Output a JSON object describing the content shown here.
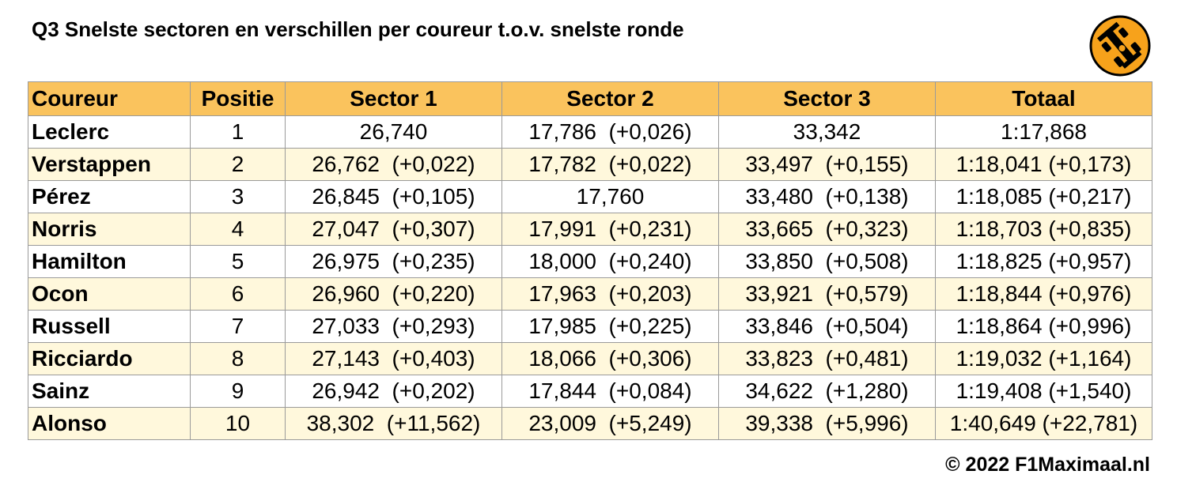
{
  "header": {
    "title": "Q3 Snelste sectoren en verschillen per coureur t.o.v. snelste ronde"
  },
  "table": {
    "columns": [
      "Coureur",
      "Positie",
      "Sector 1",
      "Sector 2",
      "Sector 3",
      "Totaal"
    ],
    "rows": [
      [
        "Leclerc",
        "1",
        "26,740",
        "17,786  (+0,026)",
        "33,342",
        "1:17,868"
      ],
      [
        "Verstappen",
        "2",
        "26,762  (+0,022)",
        "17,782  (+0,022)",
        "33,497  (+0,155)",
        "1:18,041 (+0,173)"
      ],
      [
        "Pérez",
        "3",
        "26,845  (+0,105)",
        "17,760",
        "33,480  (+0,138)",
        "1:18,085 (+0,217)"
      ],
      [
        "Norris",
        "4",
        "27,047  (+0,307)",
        "17,991  (+0,231)",
        "33,665  (+0,323)",
        "1:18,703 (+0,835)"
      ],
      [
        "Hamilton",
        "5",
        "26,975  (+0,235)",
        "18,000  (+0,240)",
        "33,850  (+0,508)",
        "1:18,825 (+0,957)"
      ],
      [
        "Ocon",
        "6",
        "26,960  (+0,220)",
        "17,963  (+0,203)",
        "33,921  (+0,579)",
        "1:18,844 (+0,976)"
      ],
      [
        "Russell",
        "7",
        "27,033  (+0,293)",
        "17,985  (+0,225)",
        "33,846  (+0,504)",
        "1:18,864 (+0,996)"
      ],
      [
        "Ricciardo",
        "8",
        "27,143  (+0,403)",
        "18,066  (+0,306)",
        "33,823  (+0,481)",
        "1:19,032 (+1,164)"
      ],
      [
        "Sainz",
        "9",
        "26,942  (+0,202)",
        "17,844  (+0,084)",
        "34,622  (+1,280)",
        "1:19,408 (+1,540)"
      ],
      [
        "Alonso",
        "10",
        "38,302  (+11,562)",
        "23,009  (+5,249)",
        "39,338  (+5,996)",
        "1:40,649 (+22,781)"
      ]
    ]
  },
  "footer": {
    "credit": "© 2022 F1Maximaal.nl"
  }
}
